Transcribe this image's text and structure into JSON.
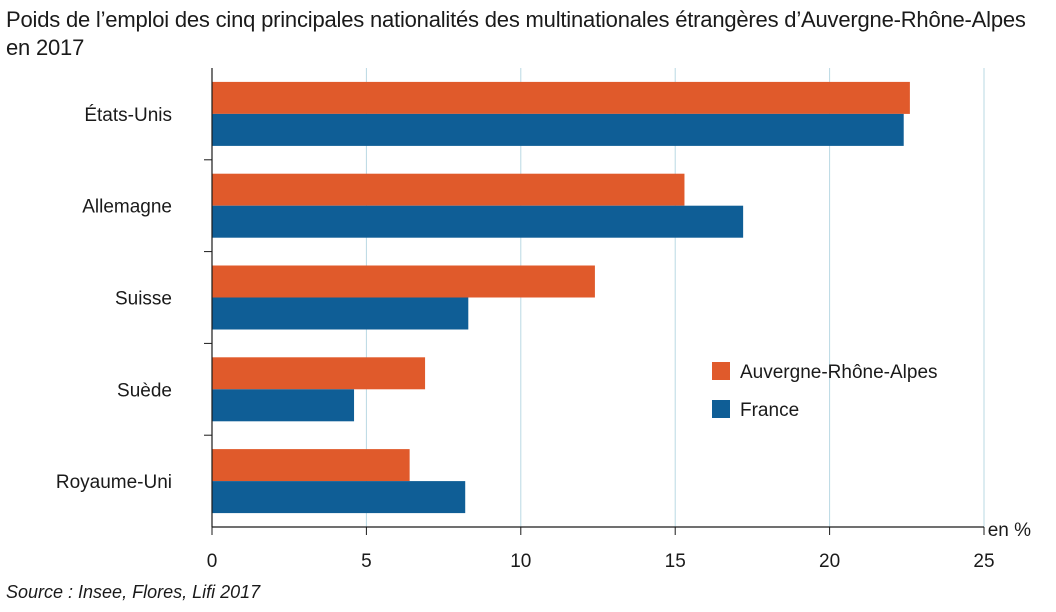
{
  "colors": {
    "series_0": "#e05a2b",
    "series_1": "#0f5e96",
    "grid": "#b9d9e3",
    "axis": "#1a1a1a"
  },
  "chart_data": {
    "type": "bar",
    "orientation": "horizontal",
    "title": "Poids de l’emploi des cinq principales nationalités des multinationales étrangères d’Auvergne-Rhône-Alpes en 2017",
    "categories": [
      "États-Unis",
      "Allemagne",
      "Suisse",
      "Suède",
      "Royaume-Uni"
    ],
    "series": [
      {
        "name": "Auvergne-Rhône-Alpes",
        "values": [
          22.6,
          15.3,
          12.4,
          6.9,
          6.4
        ]
      },
      {
        "name": "France",
        "values": [
          22.4,
          17.2,
          8.3,
          4.6,
          8.2
        ]
      }
    ],
    "xlim": [
      0,
      25
    ],
    "xticks": [
      0,
      5,
      10,
      15,
      20,
      25
    ],
    "unit_label": "en %",
    "xlabel": "",
    "ylabel": "",
    "grid": "vertical",
    "legend_position": "center-right",
    "source": "Source : Insee, Flores, Lifi 2017"
  }
}
